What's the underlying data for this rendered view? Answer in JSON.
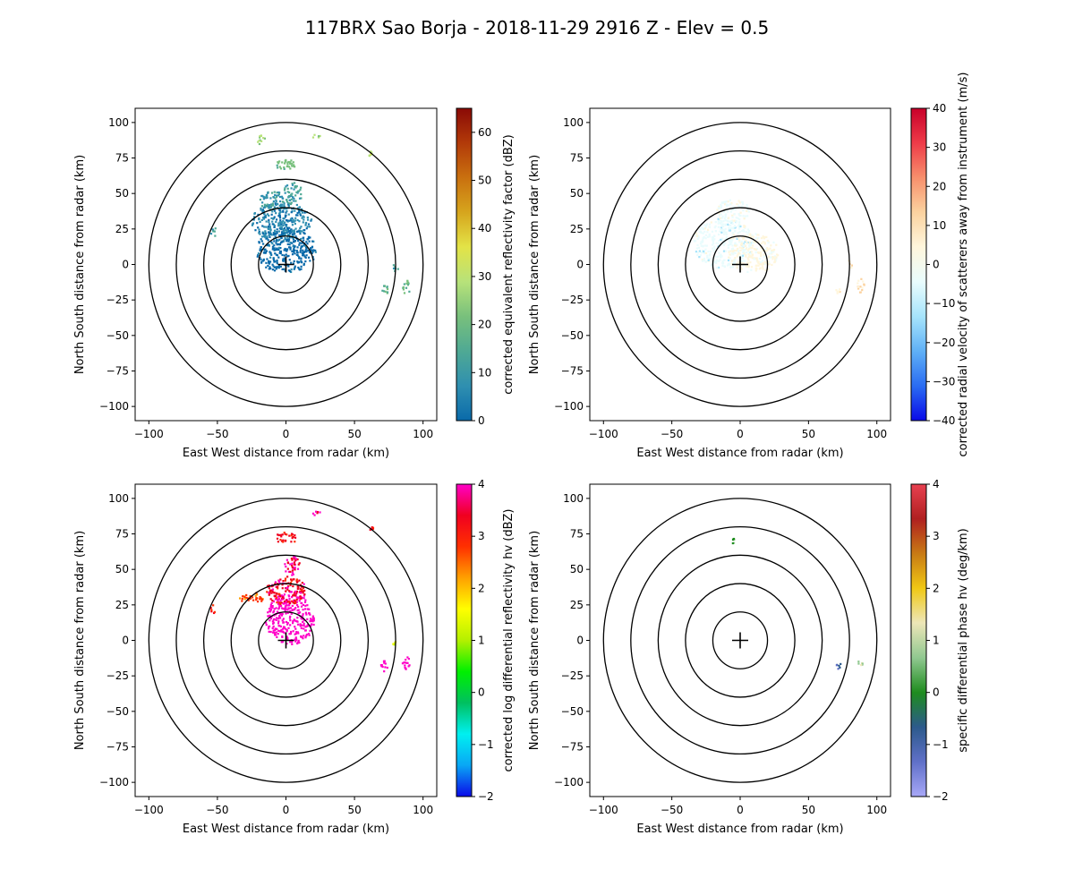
{
  "figure": {
    "title": "117BRX Sao Borja - 2018-11-29 2916 Z -  Elev = 0.5"
  },
  "chart_data": [
    {
      "type": "ppi",
      "panel": "top-left",
      "xlabel": "East West distance from radar (km)",
      "ylabel": "North South distance from radar (km)",
      "xlim": [
        -110,
        110
      ],
      "ylim": [
        -110,
        110
      ],
      "ticks": [
        -100,
        -75,
        -50,
        -25,
        0,
        25,
        50,
        75,
        100
      ],
      "xticks": [
        -100,
        -50,
        0,
        50,
        100
      ],
      "range_rings_km": [
        20,
        40,
        60,
        80,
        100
      ],
      "colorbar": {
        "label": "corrected equivalent reflectivity factor (dBZ)",
        "min": 0,
        "max": 65,
        "ticks": [
          0,
          10,
          20,
          30,
          40,
          50,
          60
        ],
        "colors": [
          "#0a6aaa",
          "#2f8fb0",
          "#4fa994",
          "#78c07c",
          "#b7e27a",
          "#e3e347",
          "#d6a51d",
          "#c9700f",
          "#b23a09",
          "#8a0a06"
        ]
      },
      "echoes": [
        {
          "x": 0,
          "y": 10,
          "rx": 22,
          "ry": 16,
          "value": 3
        },
        {
          "x": -3,
          "y": 30,
          "rx": 22,
          "ry": 14,
          "value": 8
        },
        {
          "x": -10,
          "y": 45,
          "rx": 9,
          "ry": 7,
          "value": 12
        },
        {
          "x": 5,
          "y": 50,
          "rx": 7,
          "ry": 8,
          "value": 14
        },
        {
          "x": 0,
          "y": 70,
          "rx": 8,
          "ry": 4,
          "value": 22
        },
        {
          "x": -18,
          "y": 88,
          "rx": 3,
          "ry": 4,
          "value": 25
        },
        {
          "x": 22,
          "y": 90,
          "rx": 3,
          "ry": 2,
          "value": 28
        },
        {
          "x": -53,
          "y": 23,
          "rx": 2,
          "ry": 4,
          "value": 12
        },
        {
          "x": 72,
          "y": -18,
          "rx": 3,
          "ry": 4,
          "value": 18
        },
        {
          "x": 88,
          "y": -16,
          "rx": 3,
          "ry": 5,
          "value": 20
        },
        {
          "x": 80,
          "y": -2,
          "rx": 2,
          "ry": 3,
          "value": 15
        },
        {
          "x": 62,
          "y": 78,
          "rx": 2,
          "ry": 2,
          "value": 30
        }
      ]
    },
    {
      "type": "ppi",
      "panel": "top-right",
      "xlabel": "East West distance from radar (km)",
      "ylabel": "North South distance from radar (km)",
      "xlim": [
        -110,
        110
      ],
      "ylim": [
        -110,
        110
      ],
      "ticks": [
        -100,
        -75,
        -50,
        -25,
        0,
        25,
        50,
        75,
        100
      ],
      "xticks": [
        -100,
        -50,
        0,
        50,
        100
      ],
      "range_rings_km": [
        20,
        40,
        60,
        80,
        100
      ],
      "colorbar": {
        "label": "corrected radial velocity of scatterers away from instrument (m/s)",
        "min": -40,
        "max": 40,
        "ticks": [
          -40,
          -30,
          -20,
          -10,
          0,
          10,
          20,
          30,
          40
        ],
        "colors": [
          "#0a0ae8",
          "#2a6cf2",
          "#5fb0f6",
          "#a6e4fb",
          "#e9fcfd",
          "#fff6dc",
          "#fbd29f",
          "#f78f6c",
          "#ee3b48",
          "#c8002a"
        ]
      },
      "echoes": [
        {
          "x": -12,
          "y": 15,
          "rx": 22,
          "ry": 18,
          "value": -4
        },
        {
          "x": 10,
          "y": 8,
          "rx": 18,
          "ry": 14,
          "value": 3
        },
        {
          "x": -5,
          "y": 38,
          "rx": 12,
          "ry": 8,
          "value": -2
        },
        {
          "x": 80,
          "y": 0,
          "rx": 2,
          "ry": 3,
          "value": 8
        },
        {
          "x": 88,
          "y": -15,
          "rx": 3,
          "ry": 5,
          "value": 10
        },
        {
          "x": 72,
          "y": -18,
          "rx": 2,
          "ry": 3,
          "value": 9
        }
      ]
    },
    {
      "type": "ppi",
      "panel": "bottom-left",
      "xlabel": "East West distance from radar (km)",
      "ylabel": "North South distance from radar (km)",
      "xlim": [
        -110,
        110
      ],
      "ylim": [
        -110,
        110
      ],
      "ticks": [
        -100,
        -75,
        -50,
        -25,
        0,
        25,
        50,
        75,
        100
      ],
      "xticks": [
        -100,
        -50,
        0,
        50,
        100
      ],
      "range_rings_km": [
        20,
        40,
        60,
        80,
        100
      ],
      "colorbar": {
        "label": "corrected log differential reflectivity hv (dBZ)",
        "min": -2,
        "max": 4,
        "ticks": [
          -2,
          -1,
          0,
          1,
          2,
          3,
          4
        ],
        "colors": [
          "#0a0ae8",
          "#09a7f5",
          "#00f0f0",
          "#00c060",
          "#00f000",
          "#b4f000",
          "#ffff00",
          "#ffa000",
          "#ff3000",
          "#f00020",
          "#ff00c8"
        ]
      },
      "echoes": [
        {
          "x": 3,
          "y": 15,
          "rx": 18,
          "ry": 18,
          "value": 3.9
        },
        {
          "x": 0,
          "y": 35,
          "rx": 15,
          "ry": 10,
          "value": 3.2
        },
        {
          "x": -25,
          "y": 30,
          "rx": 9,
          "ry": 4,
          "value": 2.5
        },
        {
          "x": 5,
          "y": 52,
          "rx": 6,
          "ry": 7,
          "value": 3.5
        },
        {
          "x": 0,
          "y": 72,
          "rx": 8,
          "ry": 4,
          "value": 3.0
        },
        {
          "x": 22,
          "y": 90,
          "rx": 3,
          "ry": 2,
          "value": 3.4
        },
        {
          "x": -53,
          "y": 23,
          "rx": 2,
          "ry": 4,
          "value": 2.8
        },
        {
          "x": 72,
          "y": -18,
          "rx": 3,
          "ry": 4,
          "value": 3.9
        },
        {
          "x": 88,
          "y": -16,
          "rx": 3,
          "ry": 5,
          "value": 3.9
        },
        {
          "x": 80,
          "y": -2,
          "rx": 2,
          "ry": 3,
          "value": 1.2
        },
        {
          "x": 62,
          "y": 78,
          "rx": 2,
          "ry": 2,
          "value": 3.0
        }
      ]
    },
    {
      "type": "ppi",
      "panel": "bottom-right",
      "xlabel": "East West distance from radar (km)",
      "ylabel": "North South distance from radar (km)",
      "xlim": [
        -110,
        110
      ],
      "ylim": [
        -110,
        110
      ],
      "ticks": [
        -100,
        -75,
        -50,
        -25,
        0,
        25,
        50,
        75,
        100
      ],
      "xticks": [
        -100,
        -50,
        0,
        50,
        100
      ],
      "range_rings_km": [
        20,
        40,
        60,
        80,
        100
      ],
      "colorbar": {
        "label": "specific differential phase hv (deg/km)",
        "min": -2,
        "max": 4,
        "ticks": [
          -2,
          -1,
          0,
          1,
          2,
          3,
          4
        ],
        "colors": [
          "#a8a8f8",
          "#6070c8",
          "#2c5a8c",
          "#1e8c1e",
          "#90c890",
          "#ede6b8",
          "#f0c814",
          "#c87a14",
          "#b02020",
          "#e84050"
        ]
      },
      "echoes": [
        {
          "x": -5,
          "y": 70,
          "rx": 1,
          "ry": 2,
          "value": 0.2
        },
        {
          "x": 72,
          "y": -18,
          "rx": 2,
          "ry": 2,
          "value": -0.8
        },
        {
          "x": 88,
          "y": -16,
          "rx": 2,
          "ry": 2,
          "value": 1.0
        }
      ]
    }
  ]
}
